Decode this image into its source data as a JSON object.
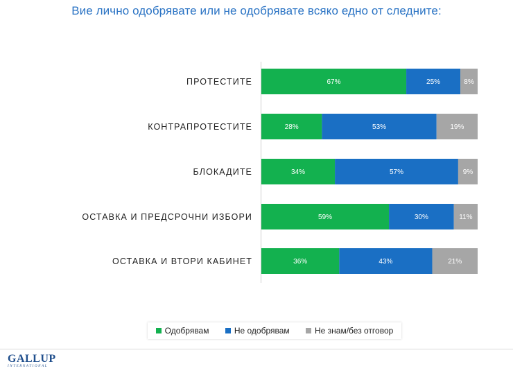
{
  "title": "Вие лично одобрявате или не одобрявате всяко едно от следните:",
  "colors": {
    "approve": "#13b14f",
    "disapprove": "#1a6fc4",
    "dont_know": "#a6a6a6"
  },
  "chart_data": {
    "type": "bar",
    "orientation": "horizontal",
    "stacked": true,
    "title": "Вие лично одобрявате или не одобрявате всяко едно от следните:",
    "categories": [
      "ПРОТЕСТИТЕ",
      "КОНТРАПРОТЕСТИТЕ",
      "БЛОКАДИТЕ",
      "ОСТАВКА И ПРЕДСРОЧНИ ИЗБОРИ",
      "ОСТАВКА И ВТОРИ КАБИНЕТ"
    ],
    "series": [
      {
        "name": "Одобрявам",
        "values": [
          67,
          28,
          34,
          59,
          36
        ]
      },
      {
        "name": "Не одобрявам",
        "values": [
          25,
          53,
          57,
          30,
          43
        ]
      },
      {
        "name": "Не знам/без отговор",
        "values": [
          8,
          19,
          9,
          11,
          21
        ]
      }
    ],
    "value_suffix": "%",
    "xlim": [
      0,
      100
    ],
    "legend_position": "bottom"
  },
  "legend": [
    "Одобрявам",
    "Не одобрявам",
    "Не знам/без отговор"
  ],
  "logo": {
    "name": "GALLUP",
    "sub": "INTERNATIONAL"
  }
}
